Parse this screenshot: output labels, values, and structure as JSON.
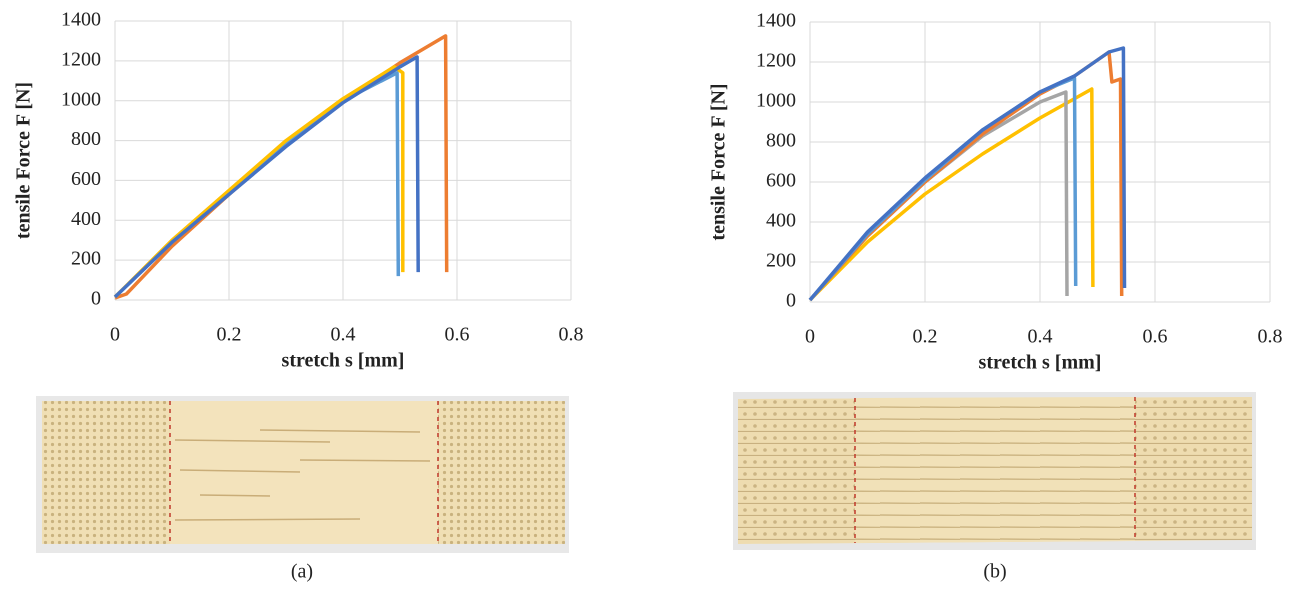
{
  "chart_data": [
    {
      "type": "line",
      "caption": "(a)",
      "x_label": "stretch s [mm]",
      "y_label": "tensile Force F [N]",
      "xlim": [
        0,
        0.8
      ],
      "xticks": [
        0,
        0.2,
        0.4,
        0.6,
        0.8
      ],
      "ylim": [
        0,
        1400
      ],
      "yticks": [
        0,
        200,
        400,
        600,
        800,
        1000,
        1200,
        1400
      ],
      "grid": true,
      "series": [
        {
          "color": "#ed7d31",
          "x": [
            0,
            0.02,
            0.1,
            0.2,
            0.3,
            0.4,
            0.5,
            0.58,
            0.582
          ],
          "values": [
            10,
            30,
            270,
            530,
            780,
            1000,
            1190,
            1325,
            140
          ]
        },
        {
          "color": "#5b9bd5",
          "x": [
            0,
            0.1,
            0.2,
            0.3,
            0.4,
            0.495,
            0.497
          ],
          "values": [
            15,
            290,
            540,
            780,
            1000,
            1140,
            120
          ]
        },
        {
          "color": "#ffc000",
          "x": [
            0,
            0.1,
            0.2,
            0.3,
            0.4,
            0.49,
            0.505,
            0.505
          ],
          "values": [
            15,
            300,
            550,
            800,
            1010,
            1170,
            1140,
            140
          ]
        },
        {
          "color": "#4472c4",
          "x": [
            0,
            0.1,
            0.2,
            0.3,
            0.4,
            0.5,
            0.53,
            0.532
          ],
          "values": [
            15,
            290,
            530,
            770,
            990,
            1170,
            1220,
            140
          ]
        }
      ]
    },
    {
      "type": "line",
      "caption": "(b)",
      "x_label": "stretch s [mm]",
      "y_label": "tensile Force F [N]",
      "xlim": [
        0,
        0.8
      ],
      "xticks": [
        0,
        0.2,
        0.4,
        0.6,
        0.8
      ],
      "ylim": [
        0,
        1400
      ],
      "yticks": [
        0,
        200,
        400,
        600,
        800,
        1000,
        1200,
        1400
      ],
      "grid": true,
      "series": [
        {
          "color": "#ffc000",
          "x": [
            0,
            0.1,
            0.2,
            0.3,
            0.4,
            0.49,
            0.492
          ],
          "values": [
            10,
            300,
            540,
            740,
            920,
            1065,
            75
          ]
        },
        {
          "color": "#a5a5a5",
          "x": [
            0,
            0.1,
            0.2,
            0.3,
            0.4,
            0.445,
            0.447
          ],
          "values": [
            10,
            330,
            600,
            830,
            1000,
            1050,
            30
          ]
        },
        {
          "color": "#ed7d31",
          "x": [
            0,
            0.1,
            0.2,
            0.3,
            0.4,
            0.46,
            0.52,
            0.525,
            0.54,
            0.542
          ],
          "values": [
            10,
            330,
            600,
            840,
            1040,
            1130,
            1250,
            1100,
            1115,
            30
          ]
        },
        {
          "color": "#5b9bd5",
          "x": [
            0,
            0.1,
            0.2,
            0.3,
            0.4,
            0.46,
            0.462
          ],
          "values": [
            10,
            340,
            610,
            860,
            1050,
            1120,
            80
          ]
        },
        {
          "color": "#4472c4",
          "x": [
            0,
            0.1,
            0.2,
            0.3,
            0.4,
            0.46,
            0.52,
            0.545,
            0.547
          ],
          "values": [
            10,
            350,
            620,
            860,
            1050,
            1130,
            1250,
            1270,
            70
          ]
        }
      ]
    }
  ]
}
